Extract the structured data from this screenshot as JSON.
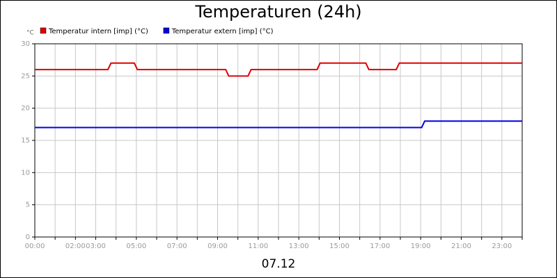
{
  "chart_data": {
    "type": "line",
    "title": "Temperaturen (24h)",
    "y_unit": "°C",
    "x_label": "07.12",
    "xlim": [
      0,
      24
    ],
    "xticks": [
      {
        "value": 0,
        "label": "00:00"
      },
      {
        "value": 2,
        "label": "02:00"
      },
      {
        "value": 3,
        "label": "03:00"
      },
      {
        "value": 5,
        "label": "05:00"
      },
      {
        "value": 7,
        "label": "07:00"
      },
      {
        "value": 9,
        "label": "09:00"
      },
      {
        "value": 11,
        "label": "11:00"
      },
      {
        "value": 13,
        "label": "13:00"
      },
      {
        "value": 15,
        "label": "15:00"
      },
      {
        "value": 17,
        "label": "17:00"
      },
      {
        "value": 19,
        "label": "19:00"
      },
      {
        "value": 21,
        "label": "21:00"
      },
      {
        "value": 23,
        "label": "23:00"
      }
    ],
    "x_minor_grid": [
      1,
      4,
      6,
      8,
      10,
      12,
      14,
      16,
      18,
      20,
      22,
      24
    ],
    "ylim": [
      0,
      30
    ],
    "yticks": [
      0,
      5,
      10,
      15,
      20,
      25,
      30
    ],
    "grid": true,
    "series": [
      {
        "name": "Temperatur intern [imp] (°C)",
        "color": "#e00000",
        "x": [
          0,
          3.6,
          3.75,
          4.9,
          5.05,
          9.4,
          9.55,
          10.5,
          10.65,
          13.9,
          14.05,
          16.3,
          16.45,
          17.8,
          17.95,
          24
        ],
        "values": [
          26,
          26,
          27,
          27,
          26,
          26,
          25,
          25,
          26,
          26,
          27,
          27,
          26,
          26,
          27,
          27
        ]
      },
      {
        "name": "Temperatur extern [imp] (°C)",
        "color": "#0000e0",
        "x": [
          0,
          19.05,
          19.2,
          24
        ],
        "values": [
          17,
          17,
          18,
          18
        ]
      }
    ]
  }
}
